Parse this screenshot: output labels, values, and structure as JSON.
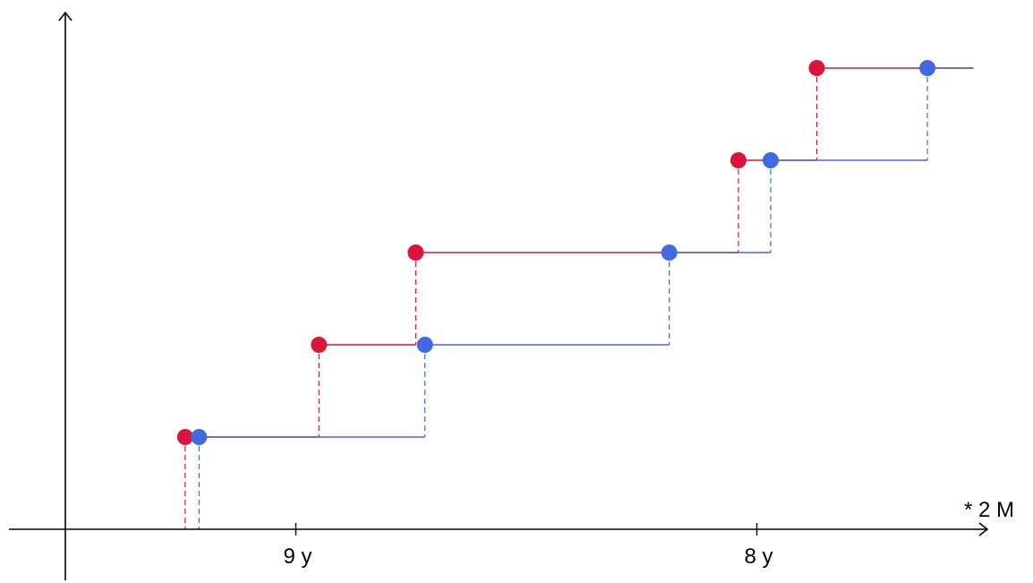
{
  "chart_data": {
    "type": "line",
    "step": "post",
    "x_unit_label": "* 2 M",
    "x_ticks": [
      {
        "value": 5,
        "label": "9 y"
      },
      {
        "value": 15,
        "label": "8 y"
      }
    ],
    "xlim": [
      -1.2,
      19.7
    ],
    "ylim": [
      -0.2,
      5.2
    ],
    "series": [
      {
        "color": "#dc143c",
        "x": [
          2.6,
          5.5,
          7.6,
          14.6,
          16.3
        ],
        "y": [
          1,
          2,
          3,
          4,
          5
        ],
        "x_end": 19.7
      },
      {
        "color": "#4169e1",
        "x": [
          2.9,
          7.8,
          13.1,
          15.3,
          18.7
        ],
        "y": [
          1,
          2,
          3,
          4,
          5
        ],
        "x_end": 19.7
      }
    ]
  }
}
